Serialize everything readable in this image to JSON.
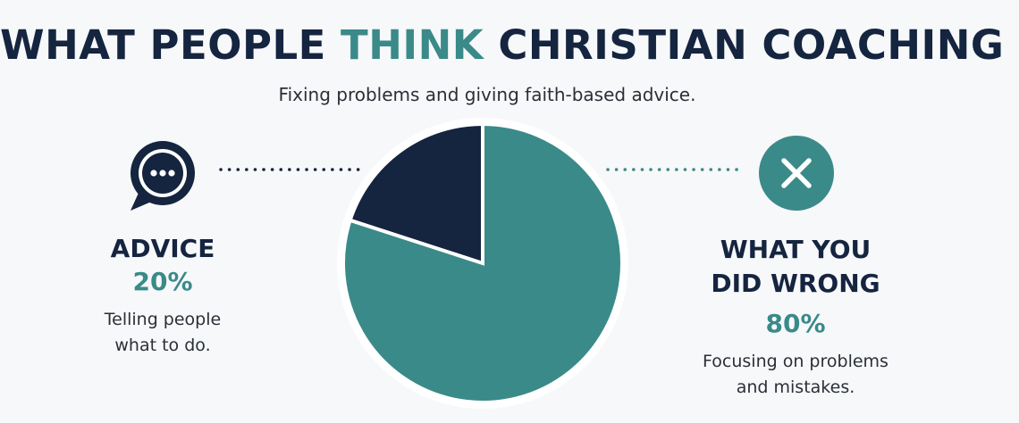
{
  "title": {
    "part1": "WHAT PEOPLE ",
    "accent": "THINK",
    "part2": " CHRISTIAN COACHING IS"
  },
  "subtitle": "Fixing problems and giving faith-based advice.",
  "colors": {
    "navy": "#15243f",
    "teal": "#3a8a89",
    "background": "#f7f8fa"
  },
  "icons": {
    "left": "speech-bubble-icon",
    "right": "x-circle-icon"
  },
  "chart_data": {
    "type": "pie",
    "title": "WHAT PEOPLE THINK CHRISTIAN COACHING IS",
    "subtitle": "Fixing problems and giving faith-based advice.",
    "slices": [
      {
        "label": "ADVICE",
        "value": 20,
        "value_label": "20%",
        "description": "Telling people what to do.",
        "color": "#15243f"
      },
      {
        "label": "WHAT YOU DID WRONG",
        "value": 80,
        "value_label": "80%",
        "description": "Focusing on problems and mistakes.",
        "color": "#3a8a89"
      }
    ],
    "legend": "annotations left and right"
  },
  "left": {
    "label": "ADVICE",
    "percent": "20%",
    "desc_line1": "Telling people",
    "desc_line2": "what to do."
  },
  "right": {
    "label_line1": "WHAT YOU",
    "label_line2": "DID WRONG",
    "percent": "80%",
    "desc_line1": "Focusing on problems",
    "desc_line2": "and mistakes."
  }
}
